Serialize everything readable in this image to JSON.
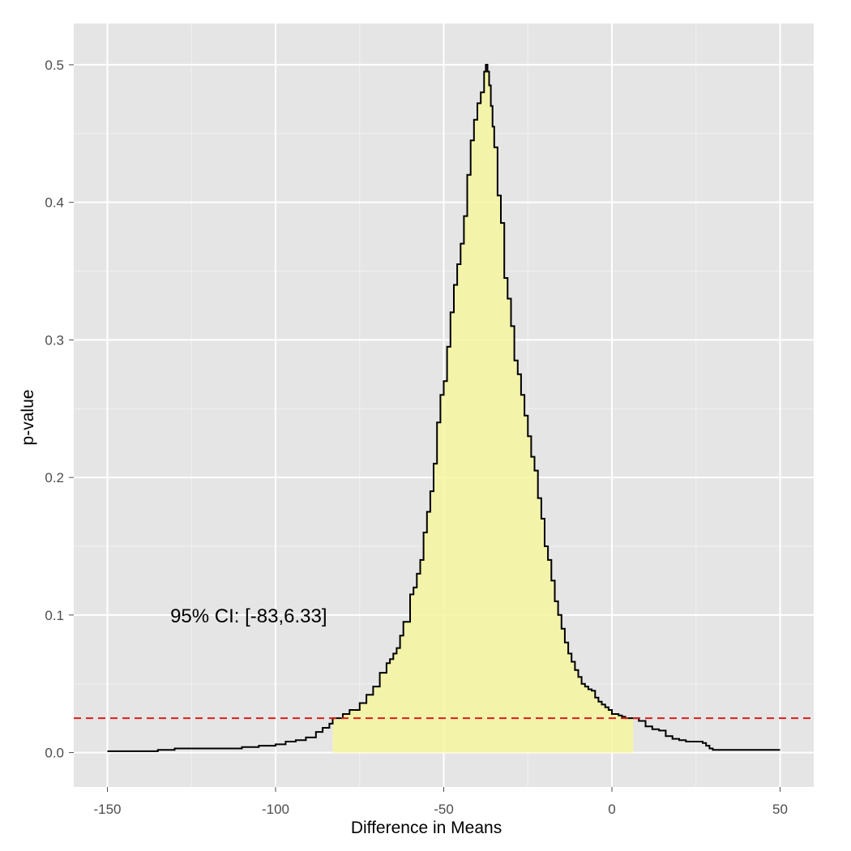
{
  "chart_data": {
    "type": "area",
    "title": "",
    "xlabel": "Difference in Means",
    "ylabel": "p-value",
    "xlim": [
      -160,
      60
    ],
    "ylim": [
      -0.025,
      0.53
    ],
    "x_ticks": [
      -150,
      -100,
      -50,
      0,
      50
    ],
    "x_tick_labels": [
      "-150",
      "-100",
      "-50",
      "0",
      "50"
    ],
    "y_ticks": [
      0.0,
      0.1,
      0.2,
      0.3,
      0.4,
      0.5
    ],
    "y_tick_labels": [
      "0.0",
      "0.1",
      "0.2",
      "0.3",
      "0.4",
      "0.5"
    ],
    "grid": true,
    "background": "#e5e5e5",
    "annotation": {
      "text": "95% CI: [-83,6.33]",
      "x": -108,
      "y": 0.1
    },
    "threshold": {
      "y": 0.025,
      "color": "#dd1c1c",
      "style": "dashed"
    },
    "ci": {
      "lower": -83,
      "upper": 6.33,
      "fill": "#f6f6a0"
    },
    "curve_color": "#000000",
    "series": [
      {
        "x": [
          -150,
          -140,
          -135,
          -130,
          -125,
          -120,
          -115,
          -110,
          -105,
          -100,
          -97,
          -94,
          -91,
          -88,
          -86,
          -84,
          -83,
          -80,
          -78,
          -75,
          -73,
          -71,
          -69,
          -67,
          -66,
          -65,
          -64,
          -63,
          -62,
          -60,
          -59,
          -58,
          -57,
          -56,
          -55,
          -54,
          -53,
          -52,
          -51,
          -50,
          -49,
          -48,
          -47,
          -46,
          -45,
          -44,
          -43,
          -42,
          -41,
          -40,
          -39,
          -38,
          -37.5,
          -37,
          -36.5,
          -36,
          -35.5,
          -35,
          -34,
          -33,
          -32,
          -31,
          -30,
          -29,
          -28,
          -27,
          -26,
          -25,
          -24,
          -23,
          -22,
          -21,
          -20,
          -19,
          -18,
          -17,
          -16,
          -15,
          -14,
          -13,
          -12,
          -11,
          -10,
          -9,
          -8,
          -7,
          -6,
          -5,
          -4,
          -3,
          -2,
          -1,
          0,
          1,
          2,
          3,
          4,
          5,
          6.33,
          8,
          10,
          12,
          14,
          16,
          18,
          20,
          22,
          25,
          27,
          28,
          29,
          30,
          35,
          40,
          45,
          50
        ],
        "y": [
          0.001,
          0.001,
          0.002,
          0.003,
          0.003,
          0.003,
          0.003,
          0.004,
          0.005,
          0.006,
          0.008,
          0.009,
          0.011,
          0.015,
          0.018,
          0.021,
          0.025,
          0.028,
          0.031,
          0.036,
          0.042,
          0.048,
          0.058,
          0.065,
          0.068,
          0.072,
          0.076,
          0.085,
          0.095,
          0.115,
          0.12,
          0.13,
          0.14,
          0.16,
          0.175,
          0.19,
          0.21,
          0.24,
          0.26,
          0.27,
          0.295,
          0.32,
          0.34,
          0.355,
          0.37,
          0.39,
          0.42,
          0.445,
          0.46,
          0.472,
          0.48,
          0.495,
          0.5,
          0.495,
          0.485,
          0.47,
          0.455,
          0.44,
          0.405,
          0.385,
          0.345,
          0.33,
          0.31,
          0.285,
          0.275,
          0.26,
          0.245,
          0.23,
          0.215,
          0.205,
          0.185,
          0.17,
          0.15,
          0.14,
          0.125,
          0.11,
          0.1,
          0.09,
          0.08,
          0.072,
          0.066,
          0.06,
          0.055,
          0.05,
          0.048,
          0.046,
          0.045,
          0.04,
          0.037,
          0.035,
          0.033,
          0.031,
          0.028,
          0.028,
          0.027,
          0.026,
          0.025,
          0.025,
          0.025,
          0.023,
          0.019,
          0.017,
          0.016,
          0.012,
          0.01,
          0.009,
          0.008,
          0.008,
          0.007,
          0.005,
          0.003,
          0.002,
          0.002,
          0.002,
          0.002,
          0.002
        ]
      }
    ]
  }
}
